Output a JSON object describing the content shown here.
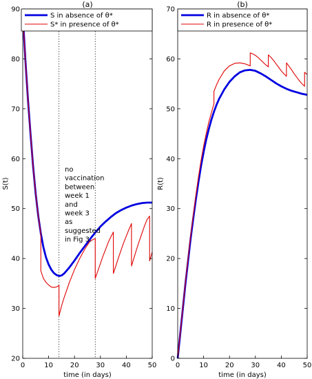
{
  "chart_data": [
    {
      "type": "line",
      "title": "(a)",
      "xlabel": "time (in days)",
      "ylabel": "S(t)",
      "xlim": [
        0,
        50
      ],
      "ylim": [
        20,
        90
      ],
      "xticks": [
        0,
        10,
        20,
        30,
        40,
        50
      ],
      "yticks": [
        20,
        30,
        40,
        50,
        60,
        70,
        80,
        90
      ],
      "legend_position": "top-right",
      "vlines": [
        14,
        28
      ],
      "annotation": [
        "no",
        "vaccination",
        "between",
        "week 1",
        "and",
        "week 3",
        "as",
        "suggested",
        "in Fig 3."
      ],
      "series": [
        {
          "name": "S in absence of θ*",
          "color": "#0000e0",
          "x": [
            0,
            1,
            2,
            3,
            4,
            5,
            6,
            7,
            8,
            9,
            10,
            11,
            12,
            13,
            14,
            15,
            16,
            18,
            20,
            22,
            24,
            26,
            28,
            30,
            32,
            34,
            36,
            38,
            40,
            42,
            44,
            46,
            48,
            50
          ],
          "y": [
            89,
            80,
            72,
            65,
            58.5,
            53,
            48.5,
            45,
            42.2,
            40.2,
            38.8,
            37.8,
            37.1,
            36.7,
            36.5,
            36.6,
            37,
            38.2,
            39.6,
            41.1,
            42.5,
            43.9,
            45.2,
            46.4,
            47.4,
            48.3,
            49.1,
            49.7,
            50.2,
            50.6,
            50.9,
            51.1,
            51.2,
            51.2
          ]
        },
        {
          "name": "S* in presence of θ*",
          "color": "#e00000",
          "x": [
            0,
            1,
            2,
            3,
            4,
            5,
            6,
            7,
            7,
            8,
            9,
            10,
            11,
            12,
            13,
            14,
            14,
            15,
            16,
            18,
            20,
            22,
            24,
            26,
            28,
            28,
            29,
            30,
            31,
            32,
            33,
            34,
            35,
            35,
            36,
            37,
            38,
            39,
            40,
            41,
            42,
            42,
            43,
            44,
            45,
            46,
            47,
            48,
            49,
            49,
            50
          ],
          "y": [
            89,
            80,
            72,
            65,
            58.5,
            53,
            48.5,
            45,
            37.5,
            36,
            35.2,
            34.7,
            34.3,
            34.2,
            34.3,
            34.6,
            28.5,
            30.5,
            32.2,
            35.2,
            37.8,
            40,
            41.9,
            43.5,
            44,
            36,
            37.5,
            39,
            40.5,
            41.8,
            43.2,
            44.3,
            45.3,
            37,
            38.6,
            40.2,
            41.7,
            43.2,
            44.5,
            45.8,
            47,
            38.5,
            40.2,
            41.9,
            43.5,
            45,
            46.5,
            47.8,
            48.5,
            39.5,
            41.3
          ]
        }
      ]
    },
    {
      "type": "line",
      "title": "(b)",
      "xlabel": "time (in days)",
      "ylabel": "R(t)",
      "xlim": [
        0,
        50
      ],
      "ylim": [
        0,
        70
      ],
      "xticks": [
        0,
        10,
        20,
        30,
        40,
        50
      ],
      "yticks": [
        0,
        10,
        20,
        30,
        40,
        50,
        60,
        70
      ],
      "legend_position": "top-right",
      "series": [
        {
          "name": "R in absence of θ*",
          "color": "#0000e0",
          "x": [
            0,
            1,
            2,
            3,
            4,
            5,
            6,
            7,
            8,
            9,
            10,
            11,
            12,
            13,
            14,
            15,
            16,
            18,
            20,
            22,
            24,
            26,
            28,
            30,
            32,
            34,
            36,
            38,
            40,
            42,
            44,
            46,
            48,
            50
          ],
          "y": [
            0,
            5,
            10,
            15,
            19.5,
            24,
            28,
            31.8,
            35.3,
            38.5,
            41.3,
            43.8,
            45.9,
            47.8,
            49.4,
            50.8,
            52,
            53.9,
            55.4,
            56.5,
            57.3,
            57.7,
            57.8,
            57.6,
            57.1,
            56.5,
            55.8,
            55.1,
            54.5,
            54,
            53.6,
            53.3,
            53,
            52.8
          ]
        },
        {
          "name": "R in presence of θ*",
          "color": "#e00000",
          "x": [
            0,
            1,
            2,
            3,
            4,
            5,
            6,
            7,
            8,
            9,
            10,
            11,
            12,
            13,
            14,
            14,
            15,
            16,
            18,
            20,
            22,
            24,
            26,
            28,
            28,
            29,
            30,
            31,
            32,
            33,
            34,
            35,
            35,
            36,
            37,
            38,
            39,
            40,
            41,
            42,
            42,
            43,
            44,
            45,
            46,
            47,
            48,
            49,
            49,
            50
          ],
          "y": [
            0,
            5.1,
            10.2,
            15.3,
            20,
            24.5,
            28.6,
            32.6,
            36.3,
            39.6,
            42.5,
            45,
            47.3,
            49.2,
            51,
            53.5,
            54.8,
            55.9,
            57.6,
            58.6,
            59.1,
            59.2,
            59,
            58.6,
            61.2,
            61,
            60.7,
            60.3,
            59.8,
            59.3,
            58.8,
            58.4,
            60.8,
            60.3,
            59.7,
            59,
            58.3,
            57.6,
            57,
            56.5,
            59.2,
            58.5,
            57.8,
            57,
            56.3,
            55.6,
            55,
            54.5,
            57.3,
            56.9
          ]
        }
      ]
    }
  ]
}
